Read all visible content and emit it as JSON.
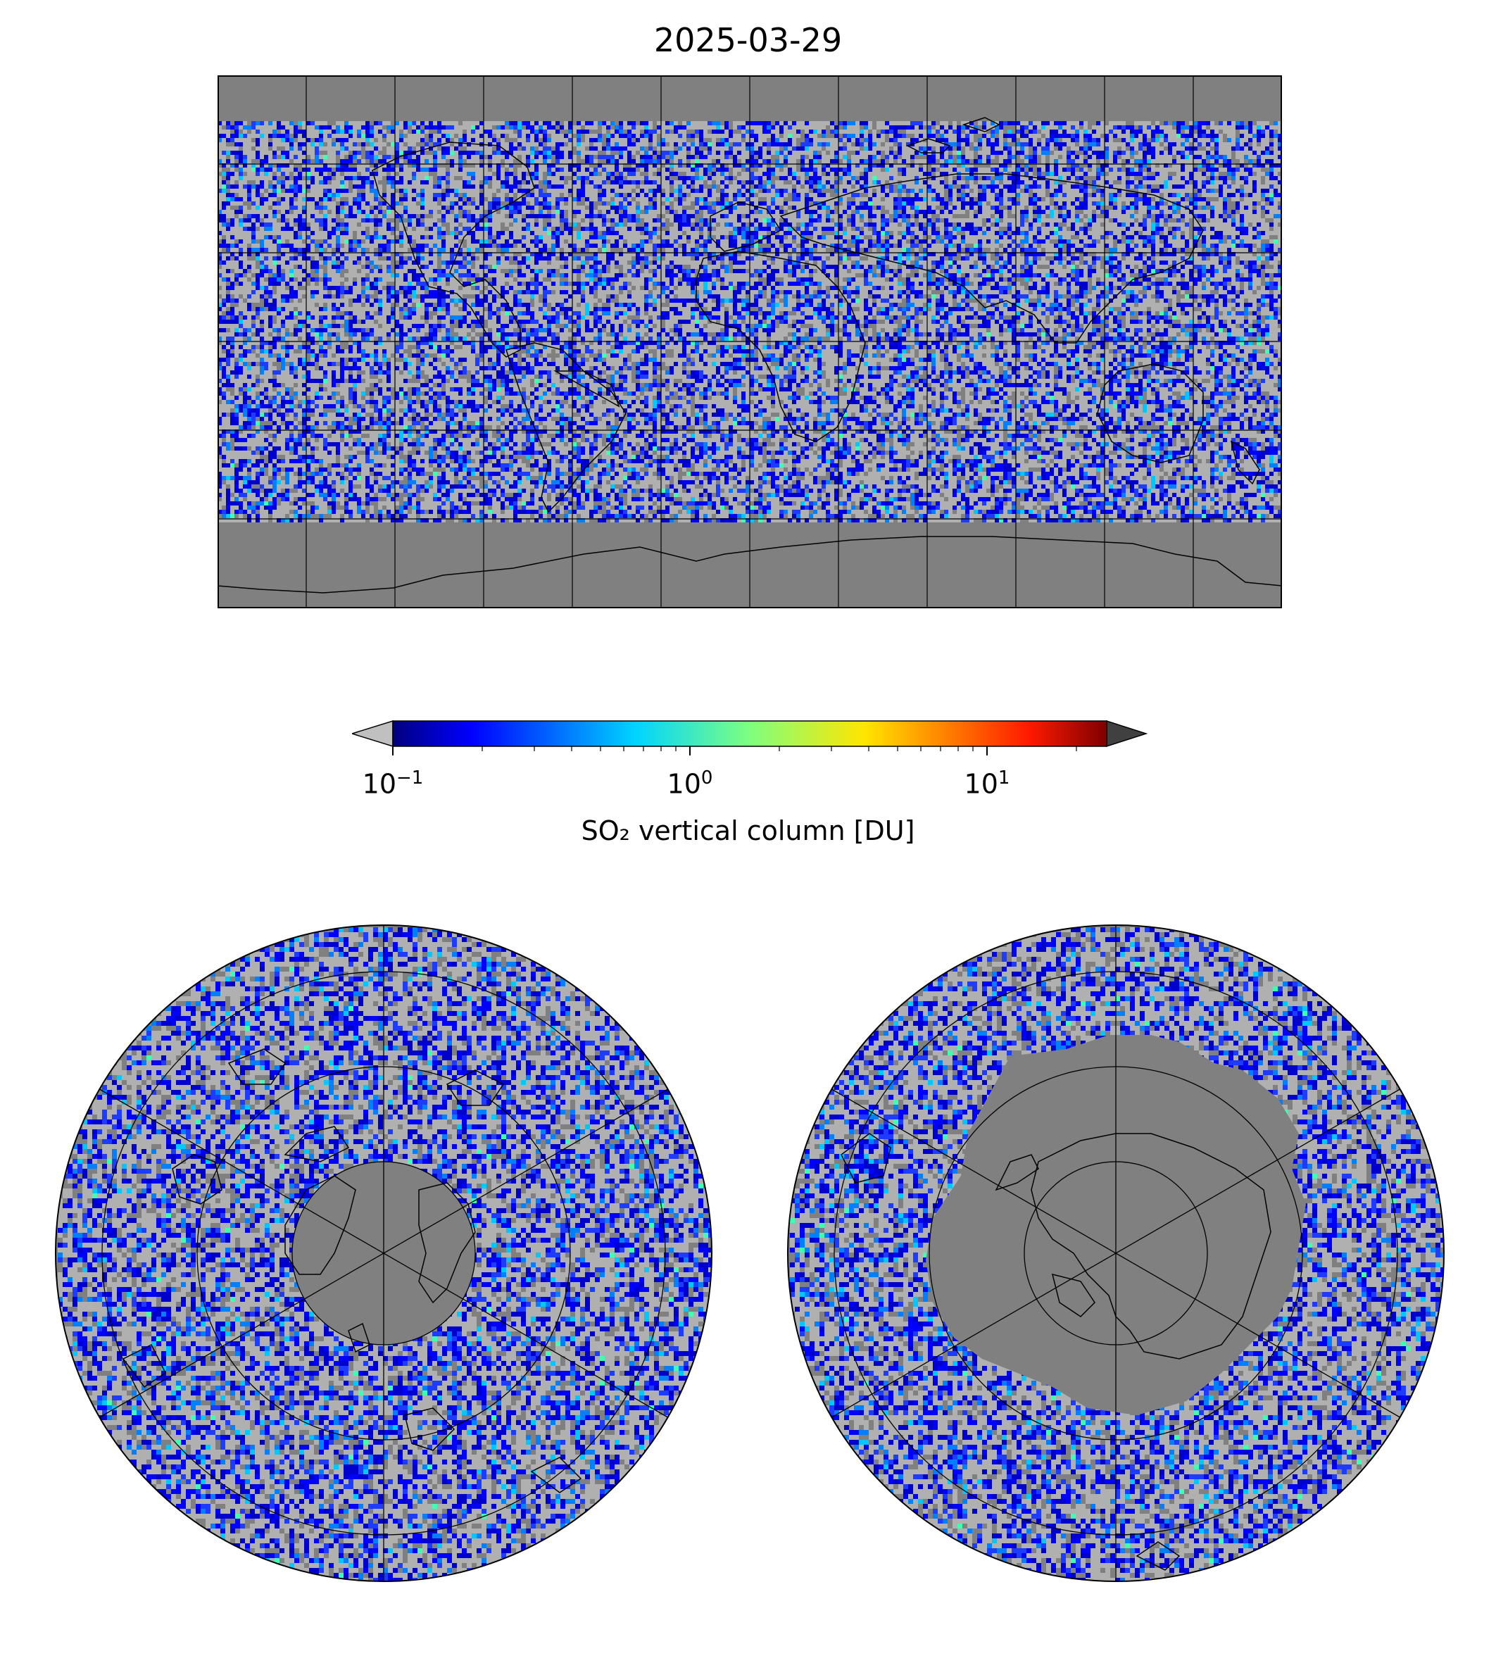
{
  "title": "2025-03-29",
  "colorbar": {
    "label": "SO₂ vertical column [DU]",
    "ticks": [
      {
        "base": "10",
        "exp": "−1",
        "value": 0.1
      },
      {
        "base": "10",
        "exp": "0",
        "value": 1
      },
      {
        "base": "10",
        "exp": "1",
        "value": 10
      }
    ],
    "range": [
      0.1,
      25
    ],
    "scale": "log",
    "colormap": [
      "#00007f",
      "#0000ff",
      "#007fff",
      "#00ffff",
      "#7fff7f",
      "#ffff00",
      "#ff7f00",
      "#ff0000",
      "#7f0000"
    ],
    "under_color": "#c0c0c0",
    "over_color": "#404040"
  },
  "colors": {
    "background_gray": "#808080",
    "low_value_gray": "#b0b0b0",
    "coastline": "#000000"
  },
  "maps": {
    "global": "global-map",
    "north": "north-polar",
    "south": "south-polar"
  }
}
